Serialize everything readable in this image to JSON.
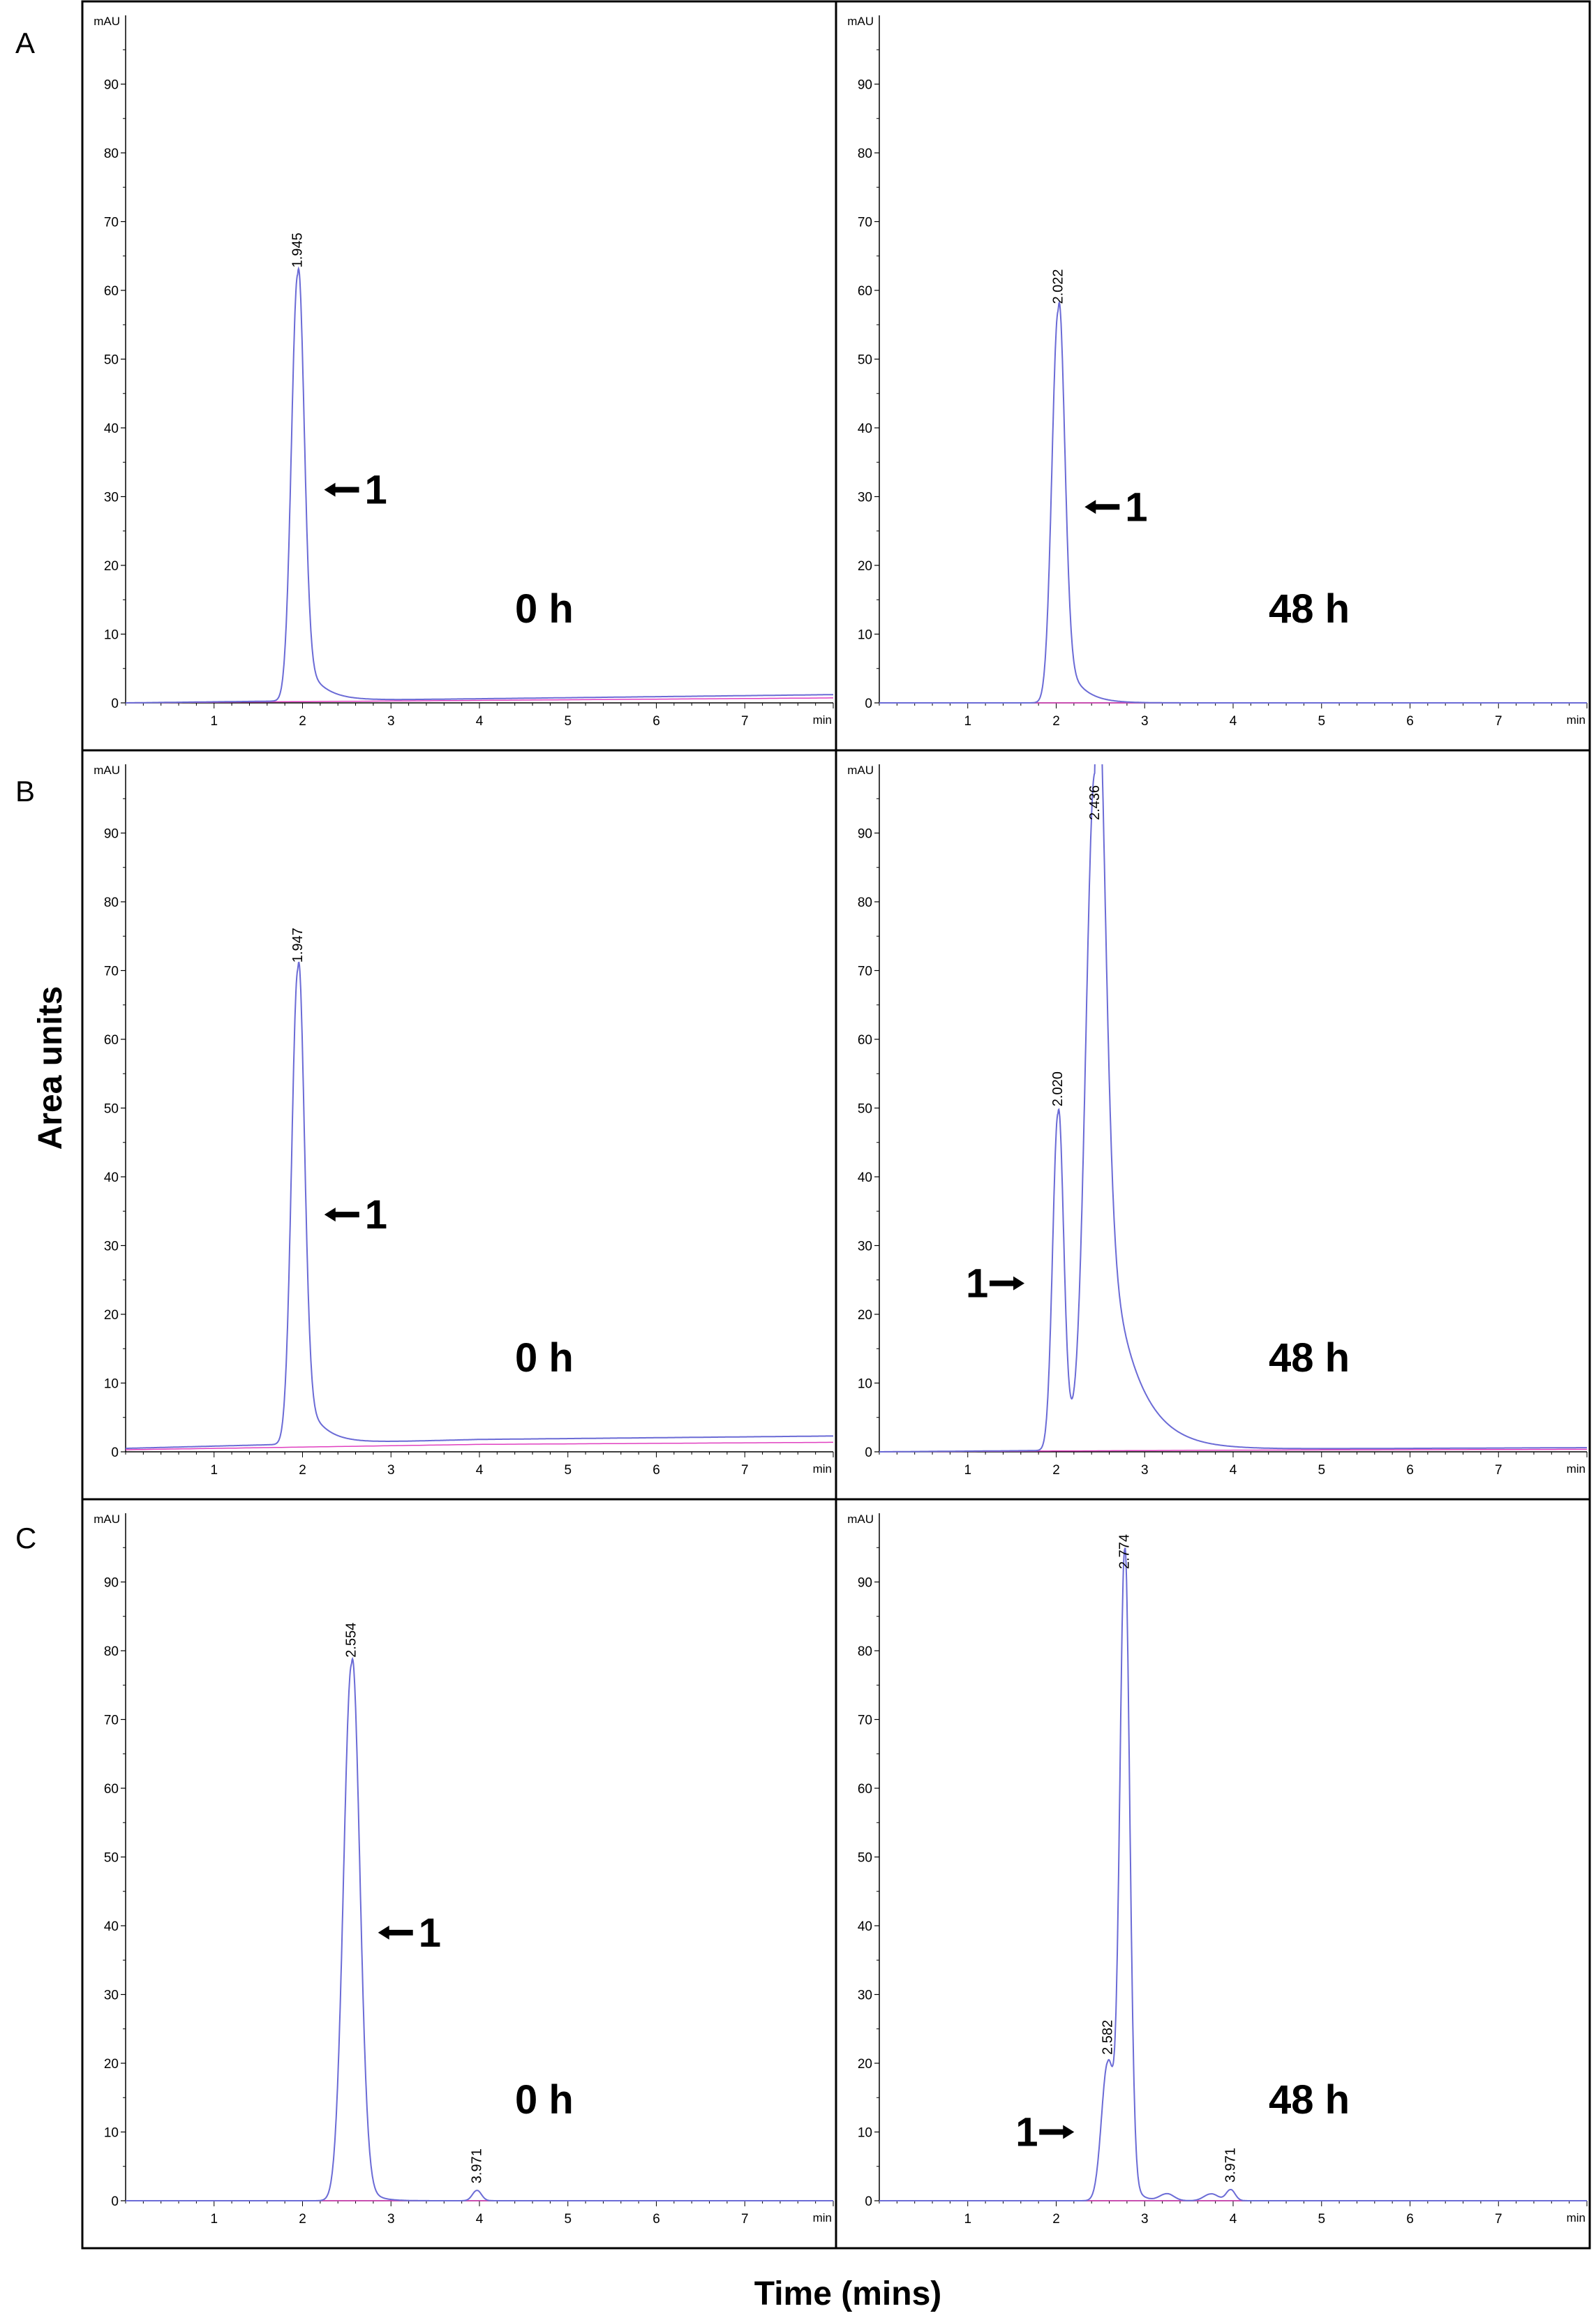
{
  "figure": {
    "ylabel": "Area units",
    "xlabel": "Time (mins)",
    "panel_rows": [
      "A",
      "B",
      "C"
    ]
  },
  "chart_data": [
    {
      "type": "line",
      "row": "A",
      "label": "0 h",
      "y_unit": "mAU",
      "x_unit": "min",
      "xlim": [
        0,
        8.0
      ],
      "ylim": [
        0,
        100
      ],
      "x_ticks": [
        1,
        2,
        3,
        4,
        5,
        6,
        7
      ],
      "y_ticks": [
        0,
        10,
        20,
        30,
        40,
        50,
        60,
        70,
        80,
        90
      ],
      "baseline": [
        [
          0,
          0.0
        ],
        [
          4,
          0.6
        ],
        [
          8,
          1.2
        ]
      ],
      "peaks": [
        {
          "rt": 1.945,
          "label": "1.945",
          "height": 62,
          "width": 0.07,
          "tail": 0.2,
          "tail_amp": 0.14,
          "annotation": "1",
          "arrow": "left"
        }
      ],
      "color": "#6b6bd6"
    },
    {
      "type": "line",
      "row": "A",
      "label": "48 h",
      "y_unit": "mAU",
      "x_unit": "min",
      "xlim": [
        0,
        8.0
      ],
      "ylim": [
        0,
        100
      ],
      "x_ticks": [
        1,
        2,
        3,
        4,
        5,
        6,
        7
      ],
      "y_ticks": [
        0,
        10,
        20,
        30,
        40,
        50,
        60,
        70,
        80,
        90
      ],
      "baseline": [
        [
          0,
          0.0
        ],
        [
          4,
          0.0
        ],
        [
          8,
          0.0
        ]
      ],
      "peaks": [
        {
          "rt": 2.022,
          "label": "2.022",
          "height": 57,
          "width": 0.07,
          "tail": 0.18,
          "tail_amp": 0.18,
          "annotation": "1",
          "arrow": "left"
        }
      ],
      "color": "#6b6bd6"
    },
    {
      "type": "line",
      "row": "B",
      "label": "0 h",
      "y_unit": "mAU",
      "x_unit": "min",
      "xlim": [
        0,
        8.0
      ],
      "ylim": [
        0,
        100
      ],
      "x_ticks": [
        1,
        2,
        3,
        4,
        5,
        6,
        7
      ],
      "y_ticks": [
        0,
        10,
        20,
        30,
        40,
        50,
        60,
        70,
        80,
        90
      ],
      "baseline": [
        [
          0,
          0.5
        ],
        [
          4,
          1.8
        ],
        [
          8,
          2.3
        ]
      ],
      "peaks": [
        {
          "rt": 1.947,
          "label": "1.947",
          "height": 69,
          "width": 0.07,
          "tail": 0.2,
          "tail_amp": 0.15,
          "annotation": "1",
          "arrow": "left"
        }
      ],
      "color": "#6b6bd6"
    },
    {
      "type": "line",
      "row": "B",
      "label": "48 h",
      "y_unit": "mAU",
      "x_unit": "min",
      "xlim": [
        0,
        8.0
      ],
      "ylim": [
        0,
        100
      ],
      "x_ticks": [
        1,
        2,
        3,
        4,
        5,
        6,
        7
      ],
      "y_ticks": [
        0,
        10,
        20,
        30,
        40,
        50,
        60,
        70,
        80,
        90
      ],
      "baseline": [
        [
          0,
          0.0
        ],
        [
          4,
          0.4
        ],
        [
          8,
          0.6
        ]
      ],
      "peaks": [
        {
          "rt": 2.02,
          "label": "2.020",
          "height": 49,
          "width": 0.06,
          "tail": 0.15,
          "tail_amp": 0.15,
          "annotation": "1",
          "arrow": "right"
        },
        {
          "rt": 2.436,
          "label": "2.436",
          "height": 98,
          "width": 0.1,
          "tail": 0.32,
          "tail_amp": 0.5
        }
      ],
      "color": "#6b6bd6"
    },
    {
      "type": "line",
      "row": "C",
      "label": "0 h",
      "y_unit": "mAU",
      "x_unit": "min",
      "xlim": [
        0,
        8.0
      ],
      "ylim": [
        0,
        100
      ],
      "x_ticks": [
        1,
        2,
        3,
        4,
        5,
        6,
        7
      ],
      "y_ticks": [
        0,
        10,
        20,
        30,
        40,
        50,
        60,
        70,
        80,
        90
      ],
      "baseline": [
        [
          0,
          0.0
        ],
        [
          4,
          0.0
        ],
        [
          8,
          0.0
        ]
      ],
      "peaks": [
        {
          "rt": 2.554,
          "label": "2.554",
          "height": 78,
          "width": 0.09,
          "tail": 0.12,
          "tail_amp": 0.1,
          "annotation": "1",
          "arrow": "left"
        },
        {
          "rt": 3.971,
          "label": "3.971",
          "height": 1.5,
          "width": 0.05,
          "tail": 0.05,
          "tail_amp": 0.1
        }
      ],
      "color": "#6b6bd6"
    },
    {
      "type": "line",
      "row": "C",
      "label": "48 h",
      "y_unit": "mAU",
      "x_unit": "min",
      "xlim": [
        0,
        8.0
      ],
      "ylim": [
        0,
        100
      ],
      "x_ticks": [
        1,
        2,
        3,
        4,
        5,
        6,
        7
      ],
      "y_ticks": [
        0,
        10,
        20,
        30,
        40,
        50,
        60,
        70,
        80,
        90
      ],
      "baseline": [
        [
          0,
          0.0
        ],
        [
          4,
          0.0
        ],
        [
          8,
          0.0
        ]
      ],
      "peaks": [
        {
          "rt": 2.582,
          "label": "2.582",
          "height": 20,
          "width": 0.07,
          "tail": 0.08,
          "tail_amp": 0.1,
          "annotation": "1",
          "arrow": "right"
        },
        {
          "rt": 2.774,
          "label": "2.774",
          "height": 94,
          "width": 0.055,
          "tail": 0.08,
          "tail_amp": 0.1
        },
        {
          "rt": 3.25,
          "height": 1.0,
          "width": 0.08,
          "tail": 0.05,
          "tail_amp": 0.1
        },
        {
          "rt": 3.75,
          "height": 1.0,
          "width": 0.08,
          "tail": 0.05,
          "tail_amp": 0.1
        },
        {
          "rt": 3.971,
          "label": "3.971",
          "height": 1.6,
          "width": 0.05,
          "tail": 0.05,
          "tail_amp": 0.1
        }
      ],
      "color": "#6b6bd6"
    }
  ]
}
